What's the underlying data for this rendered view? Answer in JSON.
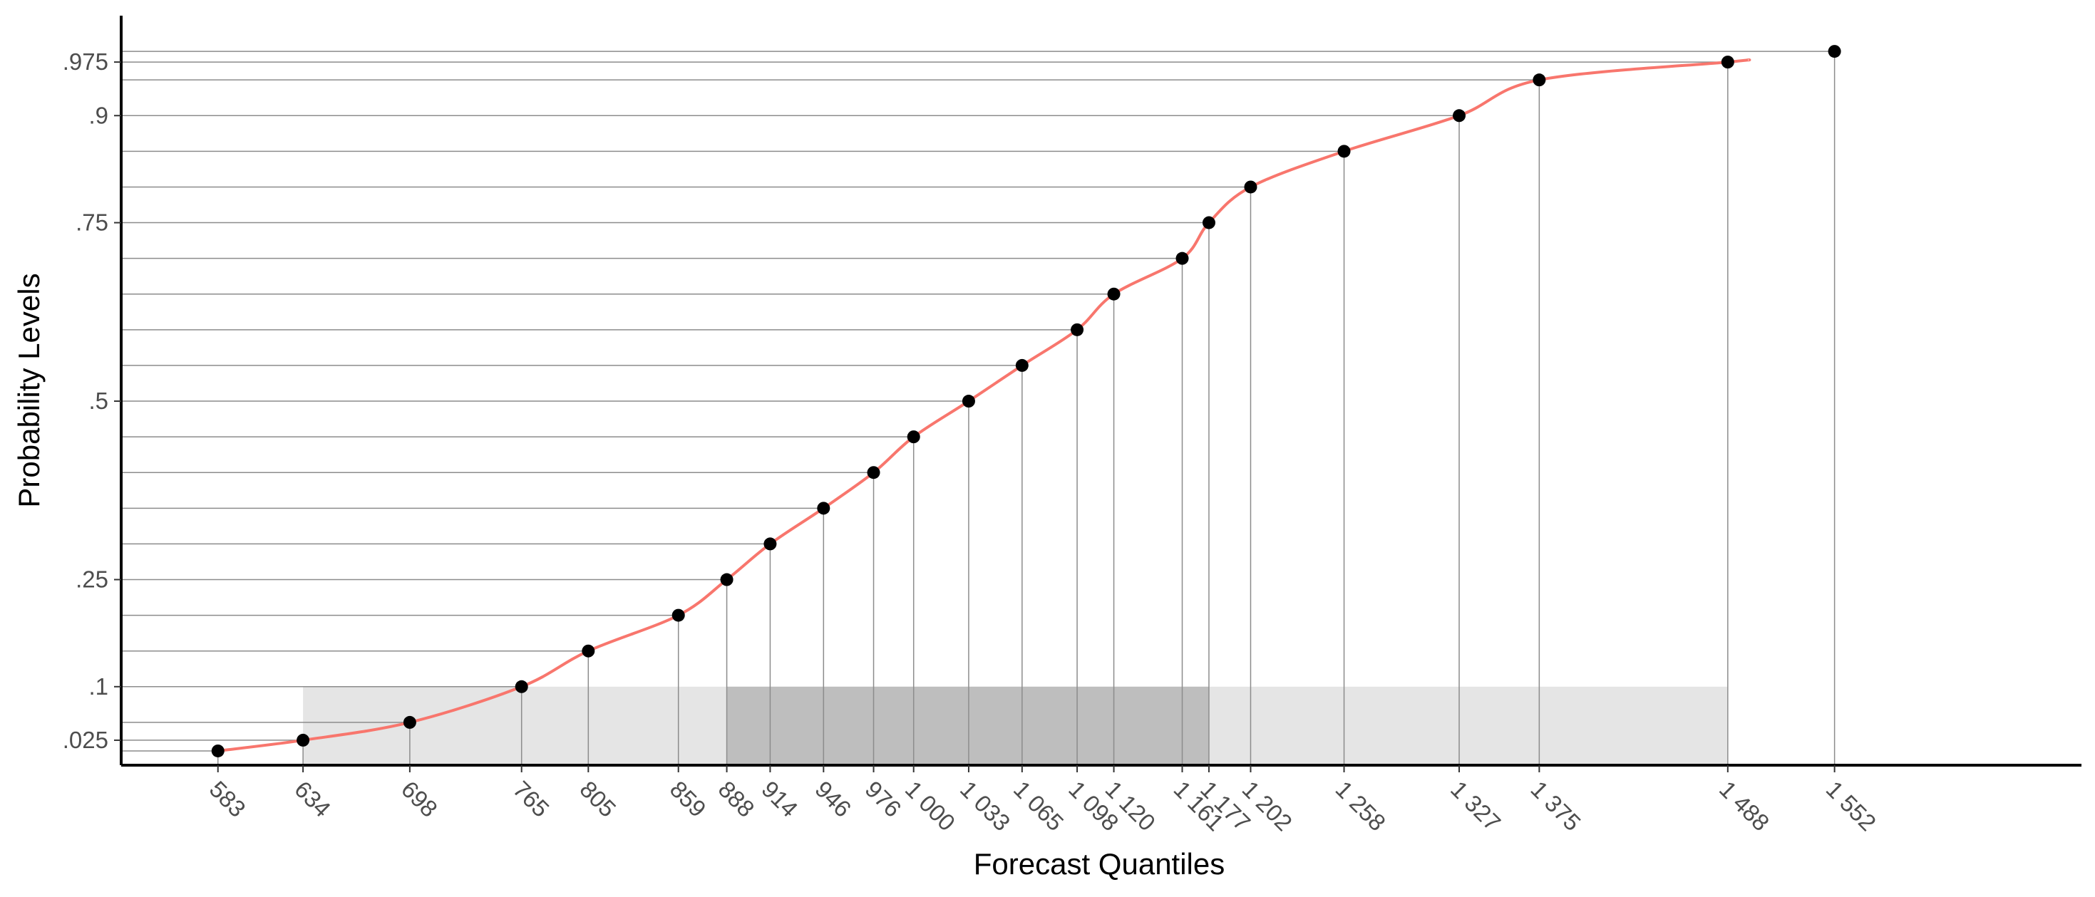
{
  "chart_data": {
    "type": "line",
    "xlabel": "Forecast Quantiles",
    "ylabel": "Probability Levels",
    "points": [
      {
        "x": 583,
        "p": 0.01
      },
      {
        "x": 634,
        "p": 0.025
      },
      {
        "x": 698,
        "p": 0.05
      },
      {
        "x": 765,
        "p": 0.1
      },
      {
        "x": 805,
        "p": 0.15
      },
      {
        "x": 859,
        "p": 0.2
      },
      {
        "x": 888,
        "p": 0.25
      },
      {
        "x": 914,
        "p": 0.3
      },
      {
        "x": 946,
        "p": 0.35
      },
      {
        "x": 976,
        "p": 0.4
      },
      {
        "x": 1000,
        "p": 0.45
      },
      {
        "x": 1033,
        "p": 0.5
      },
      {
        "x": 1065,
        "p": 0.55
      },
      {
        "x": 1098,
        "p": 0.6
      },
      {
        "x": 1120,
        "p": 0.65
      },
      {
        "x": 1161,
        "p": 0.7
      },
      {
        "x": 1177,
        "p": 0.75
      },
      {
        "x": 1202,
        "p": 0.8
      },
      {
        "x": 1258,
        "p": 0.85
      },
      {
        "x": 1327,
        "p": 0.9
      },
      {
        "x": 1375,
        "p": 0.95
      },
      {
        "x": 1488,
        "p": 0.975
      },
      {
        "x": 1552,
        "p": 0.99
      }
    ],
    "smooth_curve": [
      [
        583,
        0.01
      ],
      [
        634,
        0.025
      ],
      [
        698,
        0.05
      ],
      [
        765,
        0.1
      ],
      [
        805,
        0.15
      ],
      [
        859,
        0.2
      ],
      [
        888,
        0.25
      ],
      [
        914,
        0.3
      ],
      [
        946,
        0.35
      ],
      [
        976,
        0.4
      ],
      [
        1000,
        0.45
      ],
      [
        1033,
        0.5
      ],
      [
        1065,
        0.55
      ],
      [
        1098,
        0.6
      ],
      [
        1120,
        0.65
      ],
      [
        1161,
        0.7
      ],
      [
        1177,
        0.75
      ],
      [
        1202,
        0.8
      ],
      [
        1258,
        0.85
      ],
      [
        1327,
        0.9
      ],
      [
        1375,
        0.95
      ],
      [
        1488,
        0.975
      ],
      [
        1500,
        0.978
      ]
    ],
    "x_ticks": [
      {
        "value": 583,
        "label": "583"
      },
      {
        "value": 634,
        "label": "634"
      },
      {
        "value": 698,
        "label": "698"
      },
      {
        "value": 765,
        "label": "765"
      },
      {
        "value": 805,
        "label": "805"
      },
      {
        "value": 859,
        "label": "859"
      },
      {
        "value": 888,
        "label": "888"
      },
      {
        "value": 914,
        "label": "914"
      },
      {
        "value": 946,
        "label": "946"
      },
      {
        "value": 976,
        "label": "976"
      },
      {
        "value": 1000,
        "label": "1 000"
      },
      {
        "value": 1033,
        "label": "1 033"
      },
      {
        "value": 1065,
        "label": "1 065"
      },
      {
        "value": 1098,
        "label": "1 098"
      },
      {
        "value": 1120,
        "label": "1 120"
      },
      {
        "value": 1161,
        "label": "1 161"
      },
      {
        "value": 1177,
        "label": "1 177"
      },
      {
        "value": 1202,
        "label": "1 202"
      },
      {
        "value": 1258,
        "label": "1 258"
      },
      {
        "value": 1327,
        "label": "1 327"
      },
      {
        "value": 1375,
        "label": "1 375"
      },
      {
        "value": 1488,
        "label": "1 488"
      },
      {
        "value": 1552,
        "label": "1 552"
      }
    ],
    "y_ticks": [
      {
        "value": 0.025,
        "label": ".025"
      },
      {
        "value": 0.1,
        "label": ".1"
      },
      {
        "value": 0.25,
        "label": ".25"
      },
      {
        "value": 0.5,
        "label": ".5"
      },
      {
        "value": 0.75,
        "label": ".75"
      },
      {
        "value": 0.9,
        "label": ".9"
      },
      {
        "value": 0.975,
        "label": ".975"
      }
    ],
    "shaded_regions": [
      {
        "x_from": 634,
        "x_to": 1488,
        "p_to": 0.1,
        "shade": "light"
      },
      {
        "x_from": 888,
        "x_to": 1177,
        "p_to": 0.1,
        "shade": "dark"
      }
    ],
    "xlim": [
      525,
      1700
    ],
    "ylim": [
      -0.01,
      1.04
    ],
    "grid": false,
    "colors": {
      "curve": "#f8766d",
      "points": "#000000",
      "guide_lines": "#8c8c8c",
      "band_light": "#e5e5e5",
      "band_dark": "#bebebe",
      "axis": "#000000"
    }
  }
}
